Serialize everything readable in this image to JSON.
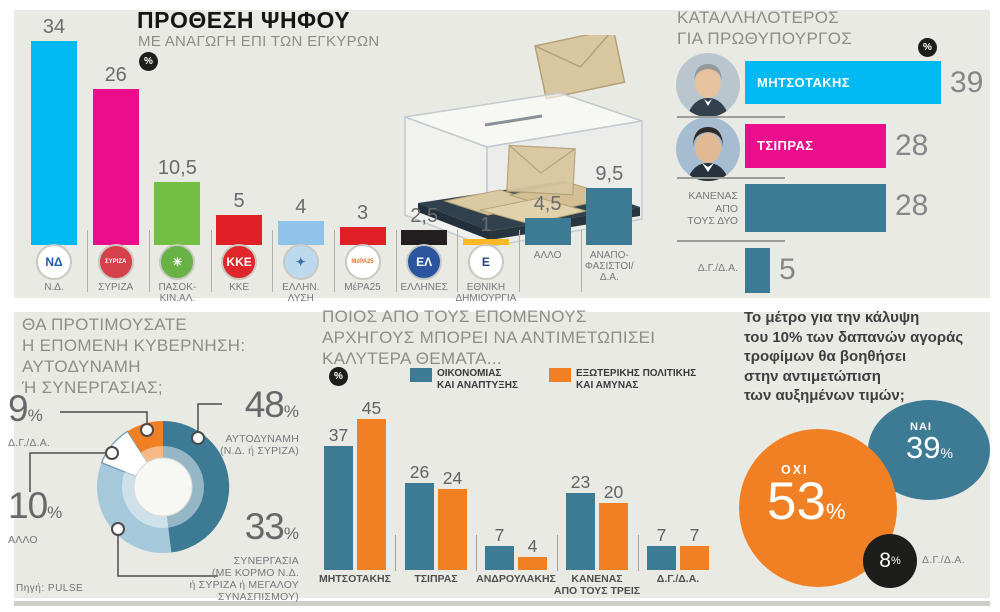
{
  "percent_sign": "%",
  "source": "Πηγή: PULSE",
  "colors": {
    "panel_bg": "#eaeae4",
    "cyan": "#00b9f2",
    "magenta": "#eb0d8c",
    "green": "#72bf44",
    "red": "#e01f26",
    "light_blue": "#8fc3ea",
    "black": "#231f20",
    "yellow": "#fcb826",
    "teal": "#3d7b95",
    "orange": "#f08023",
    "donut_light_blue": "#a6c8db"
  },
  "chart_data": [
    {
      "id": "vote_intention",
      "type": "bar",
      "title": "ΠΡΟΘΕΣΗ ΨΗΦΟΥ",
      "subtitle": "ΜΕ ΑΝΑΓΩΓΗ ΕΠΙ ΤΩΝ ΕΓΚΥΡΩΝ",
      "unit": "%",
      "ylim": [
        0,
        40
      ],
      "categories": [
        "Ν.Δ.",
        "ΣΥΡΙΖΑ",
        "ΠΑΣΟΚ-\nΚΙΝ.ΑΛ.",
        "ΚΚΕ",
        "ΕΛΛΗΝ.\nΛΥΣΗ",
        "ΜέΡΑ25",
        "ΕΛΛΗΝΕΣ",
        "ΕΘΝΙΚΗ\nΔΗΜΙΟΥΡΓΙΑ",
        "ΑΛΛΟ",
        "ΑΝΑΠΟ-\nΦΑΣΙΣΤΟΙ/\nΔ.Α."
      ],
      "values": [
        34,
        26,
        10.5,
        5,
        4,
        3,
        2.5,
        1,
        4.5,
        9.5
      ],
      "value_labels": [
        "34",
        "26",
        "10,5",
        "5",
        "4",
        "3",
        "2,5",
        "1",
        "4,5",
        "9,5"
      ],
      "bar_colors": [
        "#00b9f2",
        "#eb0d8c",
        "#72bf44",
        "#e01f26",
        "#8fc3ea",
        "#e01f26",
        "#231f20",
        "#fcb826",
        "#3d7b95",
        "#3d7b95"
      ],
      "logos": [
        {
          "text": "ΝΔ",
          "bg": "#ffffff",
          "fg": "#1f5ca9"
        },
        {
          "text": "ΣΥΡΙΖΑ",
          "bg": "#d6404a",
          "fg": "#ffffff"
        },
        {
          "text": "☀",
          "bg": "#67b346",
          "fg": "#ffffff"
        },
        {
          "text": "ΚΚΕ",
          "bg": "#e0252b",
          "fg": "#ffffff"
        },
        {
          "text": "✦",
          "bg": "#bcd9ee",
          "fg": "#3a70b0"
        },
        {
          "text": "ΜέΡΑ25",
          "bg": "#ffffff",
          "fg": "#e8762d"
        },
        {
          "text": "ΕΛ",
          "bg": "#2c55a0",
          "fg": "#ffffff"
        },
        {
          "text": "Ε",
          "bg": "#ffffff",
          "fg": "#2b3f8c"
        },
        null,
        null
      ]
    },
    {
      "id": "pm_suitability",
      "type": "bar",
      "orientation": "horizontal",
      "title": "ΚΑΤΑΛΛΗΛΟΤΕΡΟΣ\nΓΙΑ ΠΡΩΘΥΠΟΥΡΓΟΣ",
      "unit": "%",
      "categories": [
        "ΜΗΤΣΟΤΑΚΗΣ",
        "ΤΣΙΠΡΑΣ",
        "ΚΑΝΕΝΑΣ\nΑΠΟ\nΤΟΥΣ ΔΥΟ",
        "Δ.Γ./Δ.Α."
      ],
      "values": [
        39,
        28,
        28,
        5
      ],
      "value_labels": [
        "39",
        "28",
        "28",
        "5"
      ],
      "bar_colors": [
        "#00b9f2",
        "#eb0d8c",
        "#3d7b95",
        "#3d7b95"
      ],
      "label_inside": [
        true,
        true,
        false,
        false
      ],
      "has_avatar": [
        true,
        true,
        false,
        false
      ]
    },
    {
      "id": "government_preference",
      "type": "pie",
      "title": "ΘΑ ΠΡΟΤΙΜΟΥΣΑΤΕ\nΗ ΕΠΟΜΕΝΗ ΚΥΒΕΡΝΗΣΗ:\nΑΥΤΟΔΥΝΑΜΗ\nΉ ΣΥΝΕΡΓΑΣΙΑΣ;",
      "slices": [
        {
          "label": "ΑΥΤΟΔΥΝΑΜΗ\n(Ν.Δ. ή ΣΥΡΙΖΑ)",
          "value": 48,
          "value_label": "48",
          "color": "#3d7b95"
        },
        {
          "label": "ΣΥΝΕΡΓΑΣΙΑ\n(ΜΕ ΚΟΡΜΟ Ν.Δ.\nή ΣΥΡΙΖΑ ή ΜΕΓΑΛΟΥ\nΣΥΝΑΣΠΙΣΜΟΥ)",
          "value": 33,
          "value_label": "33",
          "color": "#a6c8db"
        },
        {
          "label": "ΑΛΛΟ",
          "value": 10,
          "value_label": "10",
          "color": "#ffffff"
        },
        {
          "label": "Δ.Γ./Δ.Α.",
          "value": 9,
          "value_label": "9",
          "color": "#f08023"
        }
      ]
    },
    {
      "id": "leader_issues",
      "type": "bar",
      "grouped": true,
      "title": "ΠΟΙΟΣ ΑΠΟ ΤΟΥΣ ΕΠΟΜΕΝΟΥΣ\nΑΡΧΗΓΟΥΣ ΜΠΟΡΕΙ ΝΑ ΑΝΤΙΜΕΤΩΠΙΣΕΙ\nΚΑΛΥΤΕΡΑ ΘΕΜΑΤΑ...",
      "unit": "%",
      "categories": [
        "ΜΗΤΣΟΤΑΚΗΣ",
        "ΤΣΙΠΡΑΣ",
        "ΑΝΔΡΟΥΛΑΚΗΣ",
        "ΚΑΝΕΝΑΣ\nΑΠΟ ΤΟΥΣ ΤΡΕΙΣ",
        "Δ.Γ./Δ.Α."
      ],
      "series": [
        {
          "name": "ΟΙΚΟΝΟΜΙΑΣ\nΚΑΙ ΑΝΑΠΤΥΞΗΣ",
          "color": "#3d7b95",
          "values": [
            37,
            26,
            7,
            23,
            7
          ]
        },
        {
          "name": "ΕΞΩΤΕΡΙΚΗΣ ΠΟΛΙΤΙΚΗΣ\nΚΑΙ ΑΜΥΝΑΣ",
          "color": "#f08023",
          "values": [
            45,
            24,
            4,
            20,
            7
          ]
        }
      ]
    },
    {
      "id": "food_measure",
      "type": "pie",
      "question": "Το μέτρο για την κάλυψη\nτου 10% των δαπανών αγοράς\nτροφίμων θα βοηθήσει\nστην αντιμετώπιση\nτων αυξημένων τιμών;",
      "bubbles": [
        {
          "label": "ΟΧΙ",
          "value": 53,
          "value_label": "53",
          "color": "#f08023"
        },
        {
          "label": "ΝΑΙ",
          "value": 39,
          "value_label": "39",
          "color": "#3d7b95"
        },
        {
          "label": "Δ.Γ./Δ.Α.",
          "value": 8,
          "value_label": "8",
          "color": "#1d1d1b"
        }
      ]
    }
  ]
}
